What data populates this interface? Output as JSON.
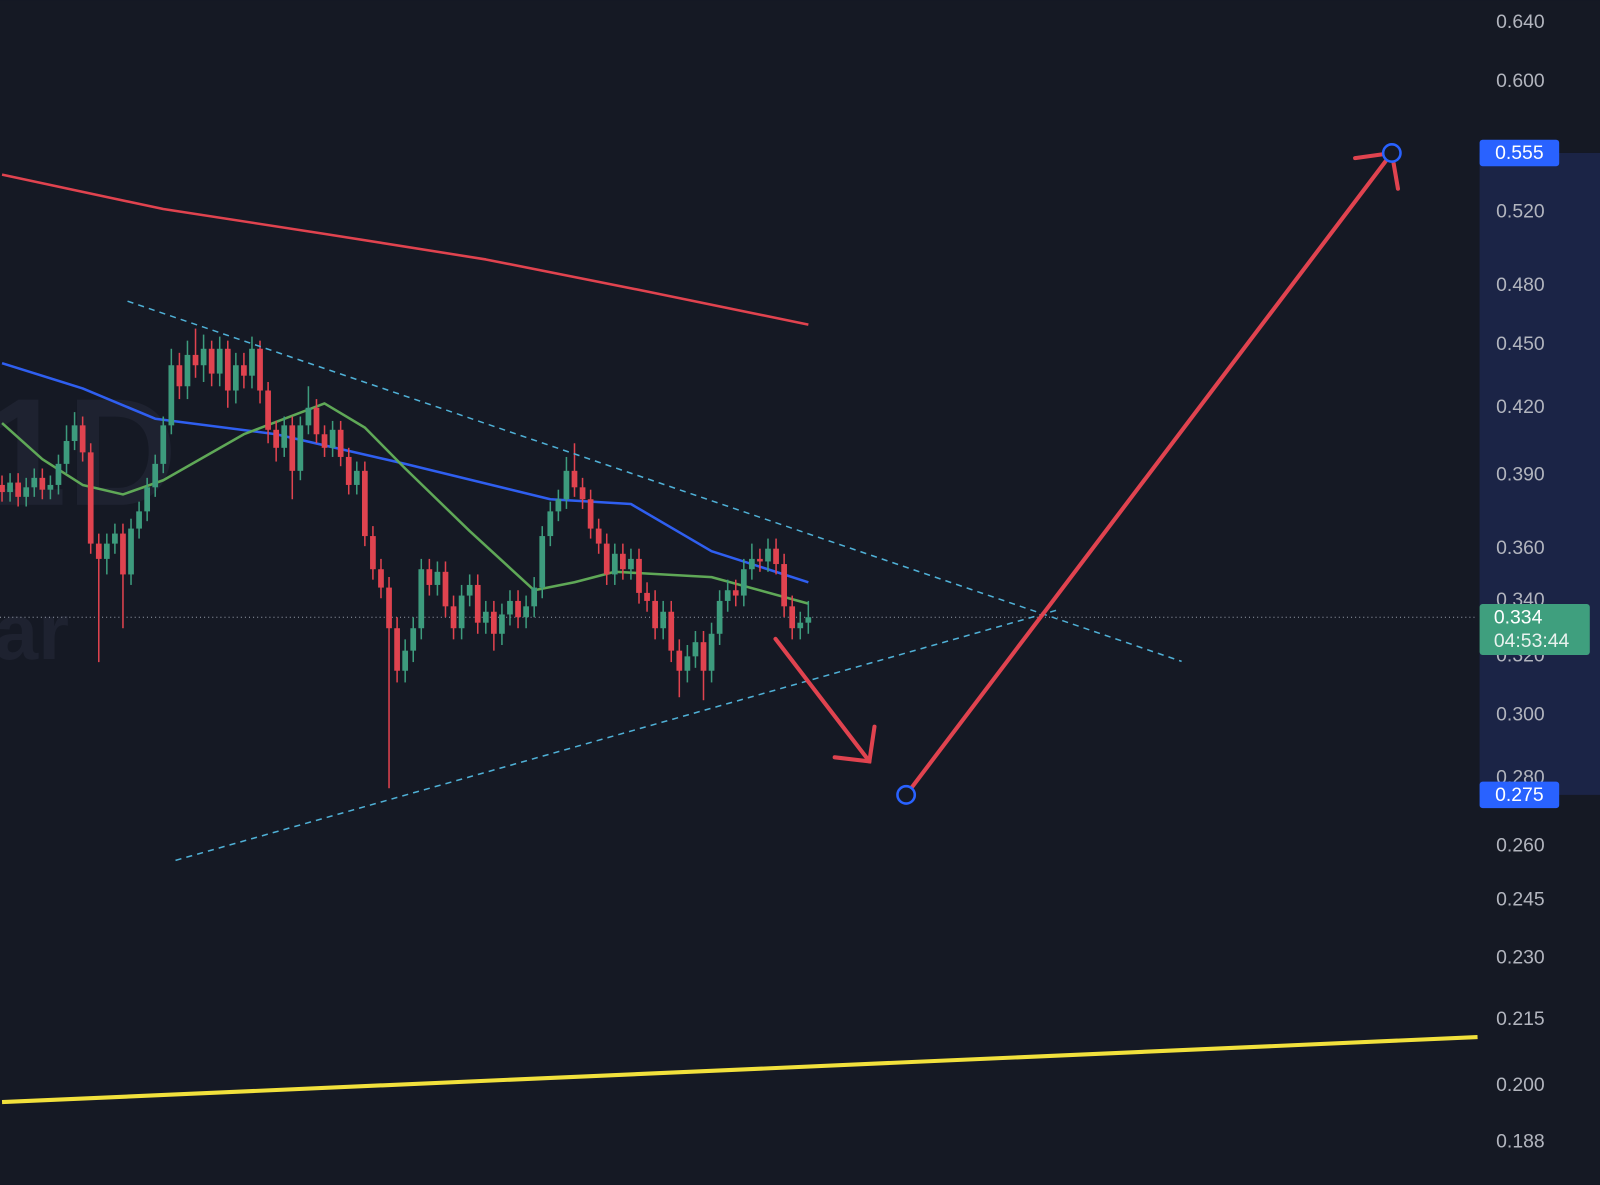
{
  "chart_data": {
    "type": "candlestick",
    "watermark": [
      "1D",
      "ar"
    ],
    "open": [
      0.386,
      0.383,
      0.387,
      0.381,
      0.385,
      0.389,
      0.384,
      0.386,
      0.395,
      0.405,
      0.412,
      0.4,
      0.362,
      0.356,
      0.362,
      0.366,
      0.35,
      0.368,
      0.375,
      0.385,
      0.395,
      0.412,
      0.44,
      0.43,
      0.445,
      0.44,
      0.448,
      0.436,
      0.448,
      0.428,
      0.44,
      0.435,
      0.448,
      0.428,
      0.41,
      0.402,
      0.412,
      0.392,
      0.412,
      0.42,
      0.408,
      0.402,
      0.41,
      0.398,
      0.386,
      0.392,
      0.365,
      0.352,
      0.345,
      0.33,
      0.315,
      0.322,
      0.33,
      0.352,
      0.346,
      0.351,
      0.338,
      0.33,
      0.342,
      0.346,
      0.332,
      0.336,
      0.328,
      0.335,
      0.34,
      0.334,
      0.338,
      0.345,
      0.365,
      0.375,
      0.38,
      0.392,
      0.385,
      0.38,
      0.368,
      0.362,
      0.35,
      0.358,
      0.352,
      0.356,
      0.343,
      0.34,
      0.33,
      0.336,
      0.322,
      0.315,
      0.32,
      0.325,
      0.315,
      0.328,
      0.34,
      0.344,
      0.342,
      0.352,
      0.356,
      0.355,
      0.36,
      0.354,
      0.338,
      0.33,
      0.332
    ],
    "high": [
      0.39,
      0.391,
      0.391,
      0.389,
      0.393,
      0.393,
      0.39,
      0.399,
      0.412,
      0.418,
      0.416,
      0.404,
      0.366,
      0.366,
      0.37,
      0.37,
      0.372,
      0.379,
      0.389,
      0.399,
      0.416,
      0.448,
      0.446,
      0.452,
      0.458,
      0.455,
      0.452,
      0.454,
      0.452,
      0.446,
      0.446,
      0.454,
      0.452,
      0.432,
      0.414,
      0.416,
      0.416,
      0.416,
      0.43,
      0.424,
      0.412,
      0.414,
      0.414,
      0.402,
      0.396,
      0.396,
      0.369,
      0.356,
      0.349,
      0.334,
      0.326,
      0.334,
      0.356,
      0.356,
      0.355,
      0.355,
      0.342,
      0.346,
      0.35,
      0.35,
      0.34,
      0.34,
      0.339,
      0.344,
      0.344,
      0.342,
      0.349,
      0.369,
      0.379,
      0.384,
      0.398,
      0.404,
      0.389,
      0.384,
      0.372,
      0.366,
      0.362,
      0.362,
      0.36,
      0.36,
      0.347,
      0.344,
      0.34,
      0.34,
      0.326,
      0.324,
      0.329,
      0.329,
      0.332,
      0.344,
      0.348,
      0.348,
      0.356,
      0.362,
      0.36,
      0.364,
      0.364,
      0.358,
      0.342,
      0.336,
      0.34
    ],
    "low": [
      0.379,
      0.379,
      0.377,
      0.377,
      0.381,
      0.38,
      0.38,
      0.382,
      0.391,
      0.401,
      0.396,
      0.358,
      0.318,
      0.35,
      0.358,
      0.33,
      0.346,
      0.364,
      0.371,
      0.381,
      0.391,
      0.408,
      0.424,
      0.424,
      0.434,
      0.432,
      0.43,
      0.43,
      0.42,
      0.422,
      0.429,
      0.429,
      0.422,
      0.404,
      0.396,
      0.398,
      0.38,
      0.388,
      0.408,
      0.404,
      0.398,
      0.398,
      0.394,
      0.382,
      0.382,
      0.361,
      0.348,
      0.341,
      0.277,
      0.311,
      0.311,
      0.318,
      0.326,
      0.342,
      0.342,
      0.334,
      0.326,
      0.326,
      0.338,
      0.328,
      0.328,
      0.322,
      0.324,
      0.331,
      0.33,
      0.33,
      0.334,
      0.341,
      0.361,
      0.371,
      0.376,
      0.381,
      0.376,
      0.364,
      0.358,
      0.346,
      0.346,
      0.348,
      0.348,
      0.339,
      0.336,
      0.326,
      0.326,
      0.318,
      0.306,
      0.311,
      0.316,
      0.305,
      0.311,
      0.324,
      0.336,
      0.338,
      0.338,
      0.348,
      0.351,
      0.351,
      0.35,
      0.334,
      0.326,
      0.326,
      0.328
    ],
    "close": [
      0.383,
      0.387,
      0.381,
      0.385,
      0.389,
      0.384,
      0.386,
      0.395,
      0.405,
      0.412,
      0.4,
      0.362,
      0.356,
      0.362,
      0.366,
      0.35,
      0.368,
      0.375,
      0.385,
      0.395,
      0.412,
      0.44,
      0.43,
      0.445,
      0.44,
      0.448,
      0.436,
      0.448,
      0.428,
      0.44,
      0.435,
      0.448,
      0.428,
      0.41,
      0.402,
      0.412,
      0.392,
      0.412,
      0.42,
      0.408,
      0.402,
      0.41,
      0.398,
      0.386,
      0.392,
      0.365,
      0.352,
      0.345,
      0.33,
      0.315,
      0.322,
      0.33,
      0.352,
      0.346,
      0.351,
      0.338,
      0.33,
      0.342,
      0.346,
      0.332,
      0.336,
      0.328,
      0.335,
      0.34,
      0.334,
      0.338,
      0.345,
      0.365,
      0.375,
      0.38,
      0.392,
      0.385,
      0.38,
      0.368,
      0.362,
      0.35,
      0.358,
      0.352,
      0.356,
      0.343,
      0.34,
      0.33,
      0.336,
      0.322,
      0.315,
      0.32,
      0.325,
      0.315,
      0.328,
      0.34,
      0.344,
      0.342,
      0.352,
      0.356,
      0.355,
      0.36,
      0.354,
      0.338,
      0.33,
      0.332,
      0.334
    ],
    "up_color": "#3d9b7d",
    "down_color": "#e0434f",
    "series": [
      {
        "color": "#e0434f",
        "x": [
          0,
          20,
          40,
          60,
          80,
          100
        ],
        "values": [
          0.542,
          0.522,
          0.508,
          0.494,
          0.477,
          0.46
        ]
      },
      {
        "color": "#2f5ff0",
        "x": [
          0,
          10,
          19,
          34,
          50,
          68,
          78,
          88,
          100
        ],
        "values": [
          0.441,
          0.429,
          0.415,
          0.408,
          0.395,
          0.38,
          0.378,
          0.359,
          0.347
        ]
      },
      {
        "color": "#5fa857",
        "x": [
          0,
          5,
          10,
          15,
          20,
          30,
          40,
          45,
          50,
          58,
          66,
          71,
          76,
          88,
          100
        ],
        "values": [
          0.413,
          0.397,
          0.386,
          0.382,
          0.388,
          0.408,
          0.422,
          0.411,
          0.393,
          0.367,
          0.344,
          0.347,
          0.351,
          0.349,
          0.339
        ]
      },
      {
        "color": "#f2e13c",
        "x": [
          0,
          183
        ],
        "values": [
          0.1965,
          0.211
        ]
      }
    ],
    "log_scale": true,
    "xlim": [
      -0.25,
      183
    ],
    "ylim": [
      0.1795,
      0.656
    ],
    "yticks": [
      {
        "value": 0.64,
        "label": "0.640"
      },
      {
        "value": 0.6,
        "label": "0.600"
      },
      {
        "value": 0.52,
        "label": "0.520"
      },
      {
        "value": 0.48,
        "label": "0.480"
      },
      {
        "value": 0.45,
        "label": "0.450"
      },
      {
        "value": 0.42,
        "label": "0.420"
      },
      {
        "value": 0.39,
        "label": "0.390"
      },
      {
        "value": 0.36,
        "label": "0.360"
      },
      {
        "value": 0.34,
        "label": "0.340"
      },
      {
        "value": 0.32,
        "label": "0.320"
      },
      {
        "value": 0.3,
        "label": "0.300"
      },
      {
        "value": 0.28,
        "label": "0.280"
      },
      {
        "value": 0.26,
        "label": "0.260"
      },
      0.245,
      {
        "value": 0.23,
        "label": "0.230"
      },
      0.215,
      {
        "value": 0.2,
        "label": "0.200"
      },
      0.188
    ],
    "current_price": {
      "value": 0.334,
      "countdown": "04:53:44",
      "color": "#3f9f7e"
    },
    "price_labels": [
      0.555,
      0.275
    ],
    "price_label_color": "#2962ff"
  }
}
